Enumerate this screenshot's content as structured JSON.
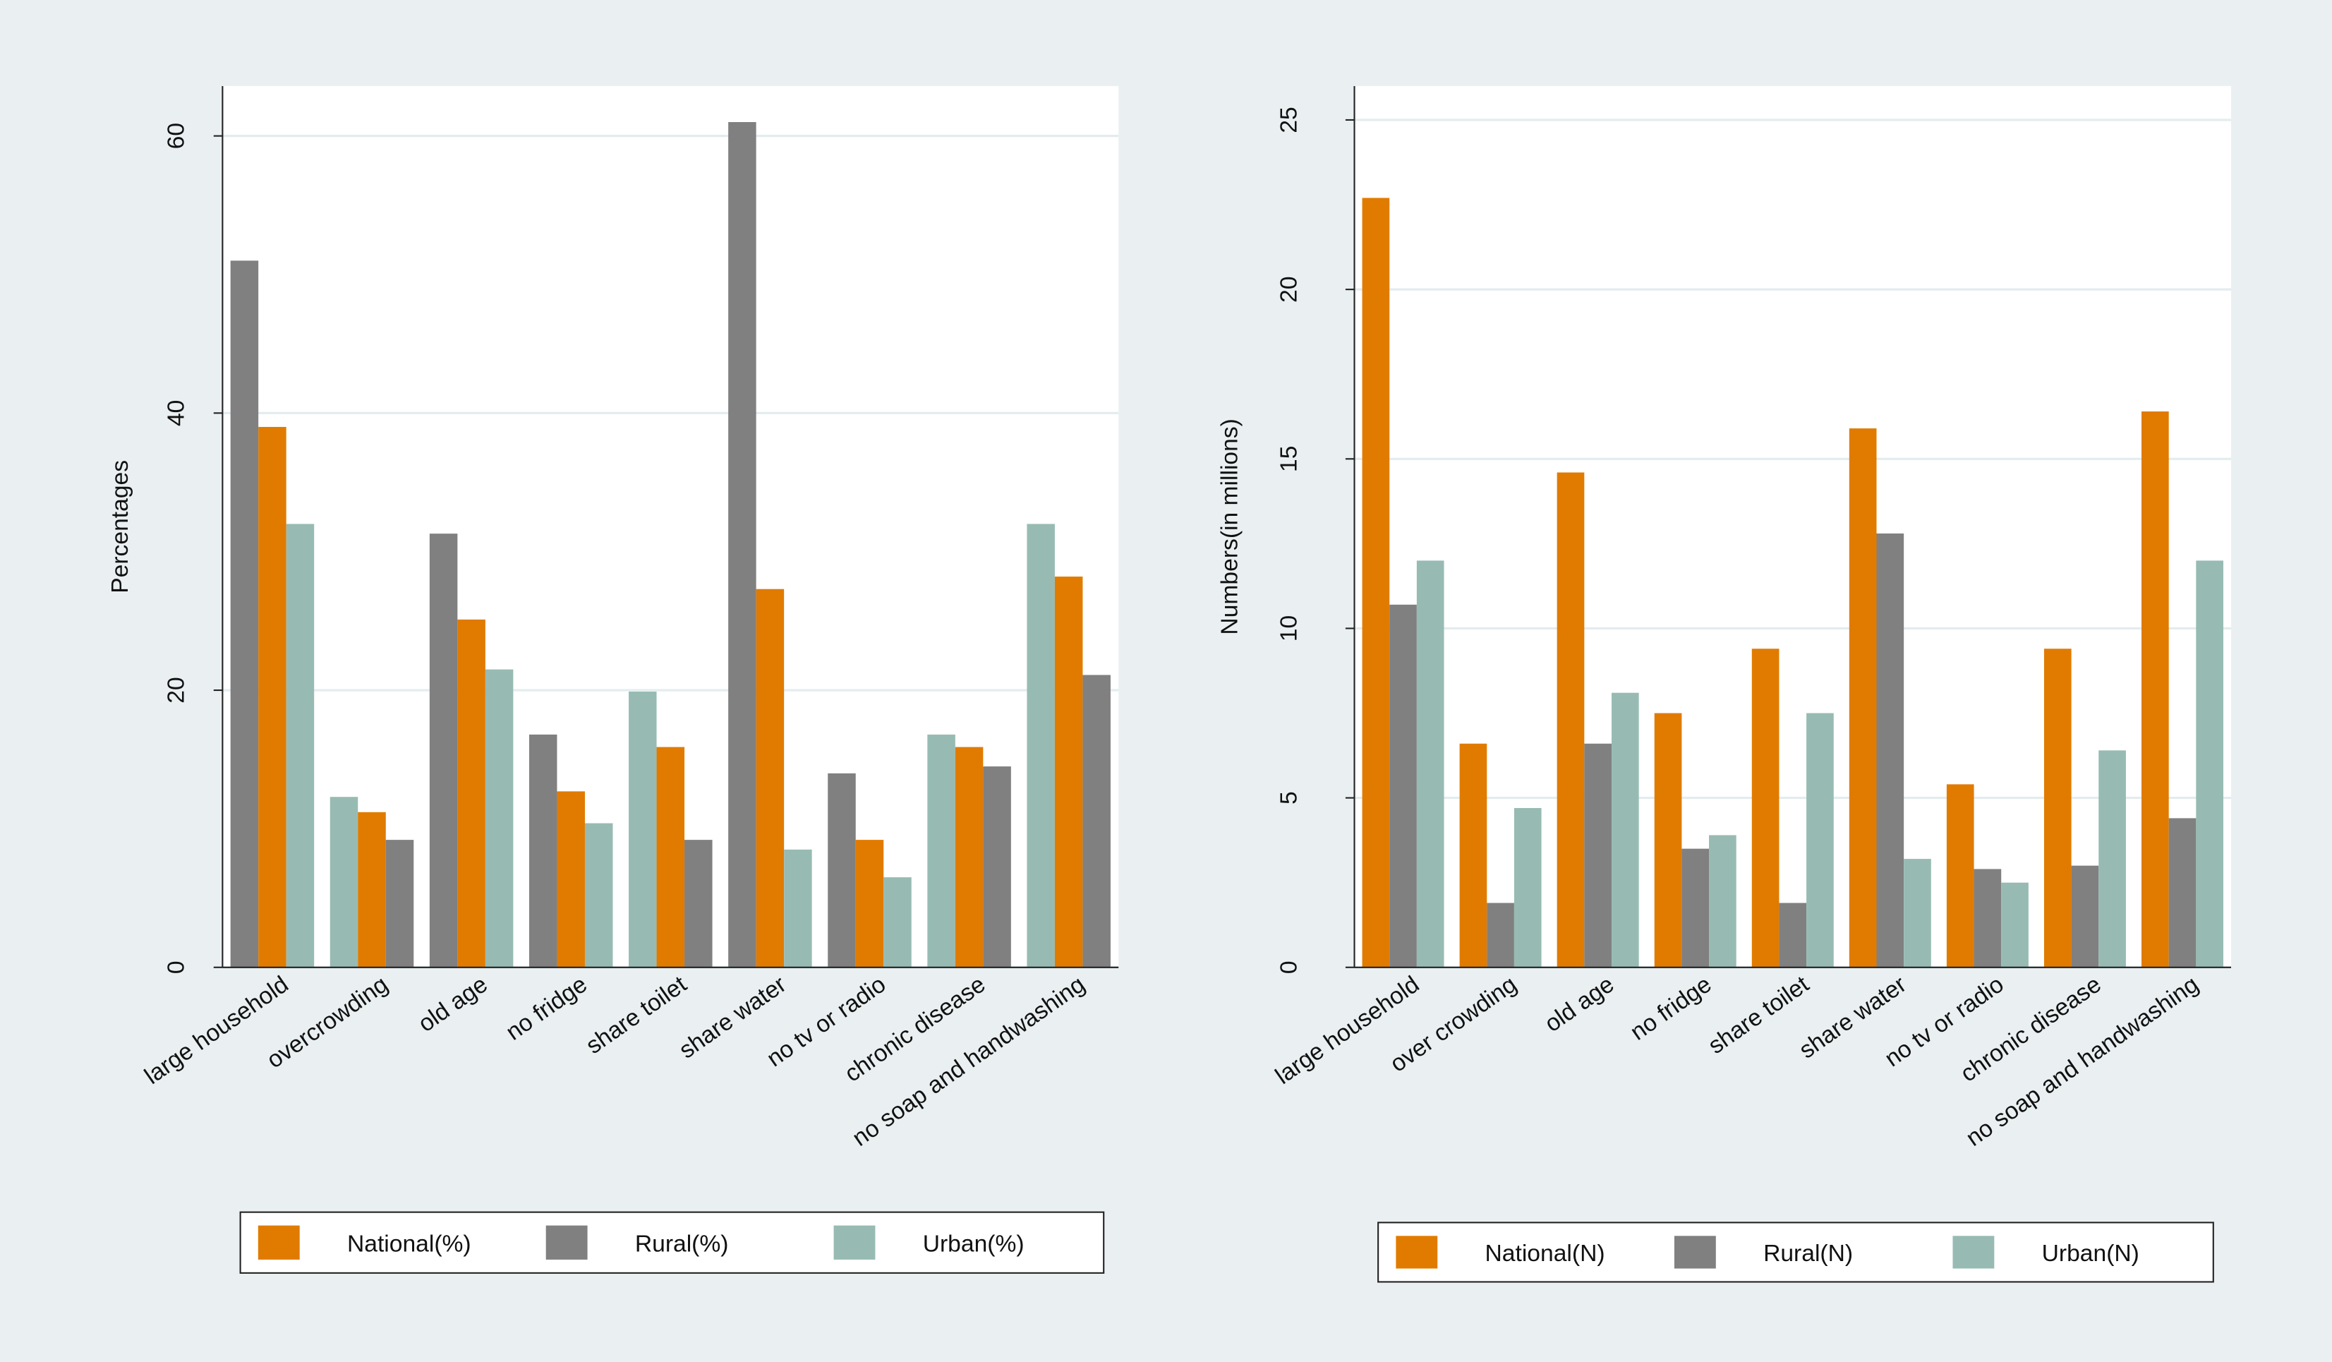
{
  "chart_data": [
    {
      "type": "bar",
      "y_label": "Percentages",
      "sort_bars": "descending",
      "categories": [
        "large household",
        "overcrowding",
        "old age",
        "no fridge",
        "share toilet",
        "share water",
        "no tv or radio",
        "chronic disease",
        "no soap and handwashing"
      ],
      "series": [
        {
          "name": "National(%)",
          "color": "#e07b00",
          "values": [
            39,
            11.2,
            25.1,
            12.7,
            15.9,
            27.3,
            9.2,
            15.9,
            28.2
          ]
        },
        {
          "name": "Rural(%)",
          "color": "#808080",
          "values": [
            51,
            9.2,
            31.3,
            16.8,
            9.2,
            61,
            14,
            14.5,
            21.1
          ]
        },
        {
          "name": "Urban(%)",
          "color": "#97bbb3",
          "values": [
            32,
            12.3,
            21.5,
            10.4,
            19.9,
            8.5,
            6.5,
            16.8,
            32
          ]
        }
      ],
      "ylim": [
        0,
        63.6
      ],
      "yticks": [
        0,
        20,
        40,
        60
      ],
      "grid": true
    },
    {
      "type": "bar",
      "y_label": "Numbers(in millions)",
      "categories": [
        "large household",
        "over crowding",
        "old age",
        "no fridge",
        "share toilet",
        "share water",
        "no tv or radio",
        "chronic disease",
        "no soap and handwashing"
      ],
      "series": [
        {
          "name": "National(N)",
          "color": "#e07b00",
          "values": [
            22.7,
            6.6,
            14.6,
            7.5,
            9.4,
            15.9,
            5.4,
            9.4,
            16.4
          ]
        },
        {
          "name": "Rural(N)",
          "color": "#808080",
          "values": [
            10.7,
            1.9,
            6.6,
            3.5,
            1.9,
            12.8,
            2.9,
            3,
            4.4
          ]
        },
        {
          "name": "Urban(N)",
          "color": "#97bbb3",
          "values": [
            12,
            4.7,
            8.1,
            3.9,
            7.5,
            3.2,
            2.5,
            6.4,
            12
          ]
        }
      ],
      "ylim": [
        0,
        26
      ],
      "yticks": [
        0,
        5,
        10,
        15,
        20,
        25
      ],
      "grid": true
    }
  ]
}
